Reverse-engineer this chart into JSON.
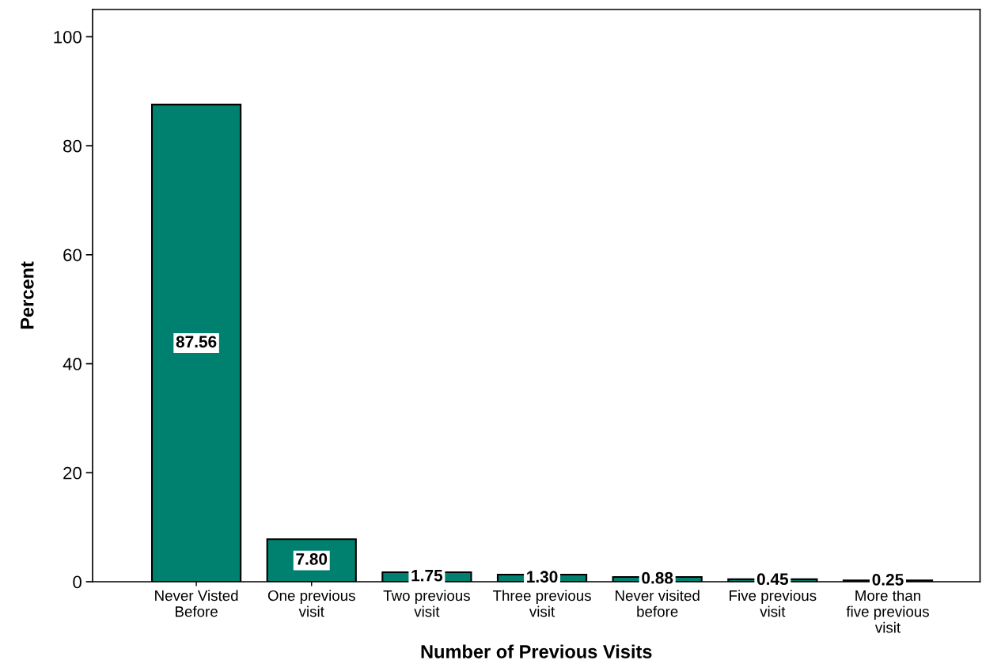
{
  "chart_data": {
    "type": "bar",
    "xlabel": "Number of Previous Visits",
    "ylabel": "Percent",
    "categories": [
      "Never Visted\nBefore",
      "One previous\nvisit",
      "Two previous\nvisit",
      "Three previous\nvisit",
      "Never visited\nbefore",
      "Five previous\nvisit",
      "More than\nfive previous\nvisit"
    ],
    "values": [
      87.56,
      7.8,
      1.75,
      1.3,
      0.88,
      0.45,
      0.25
    ],
    "value_labels": [
      "87.56",
      "7.80",
      "1.75",
      "1.30",
      "0.88",
      "0.45",
      "0.25"
    ],
    "color": "#00806e",
    "ylim": [
      0,
      105
    ],
    "yticks": [
      0,
      20,
      40,
      60,
      80,
      100
    ],
    "grid": false
  }
}
